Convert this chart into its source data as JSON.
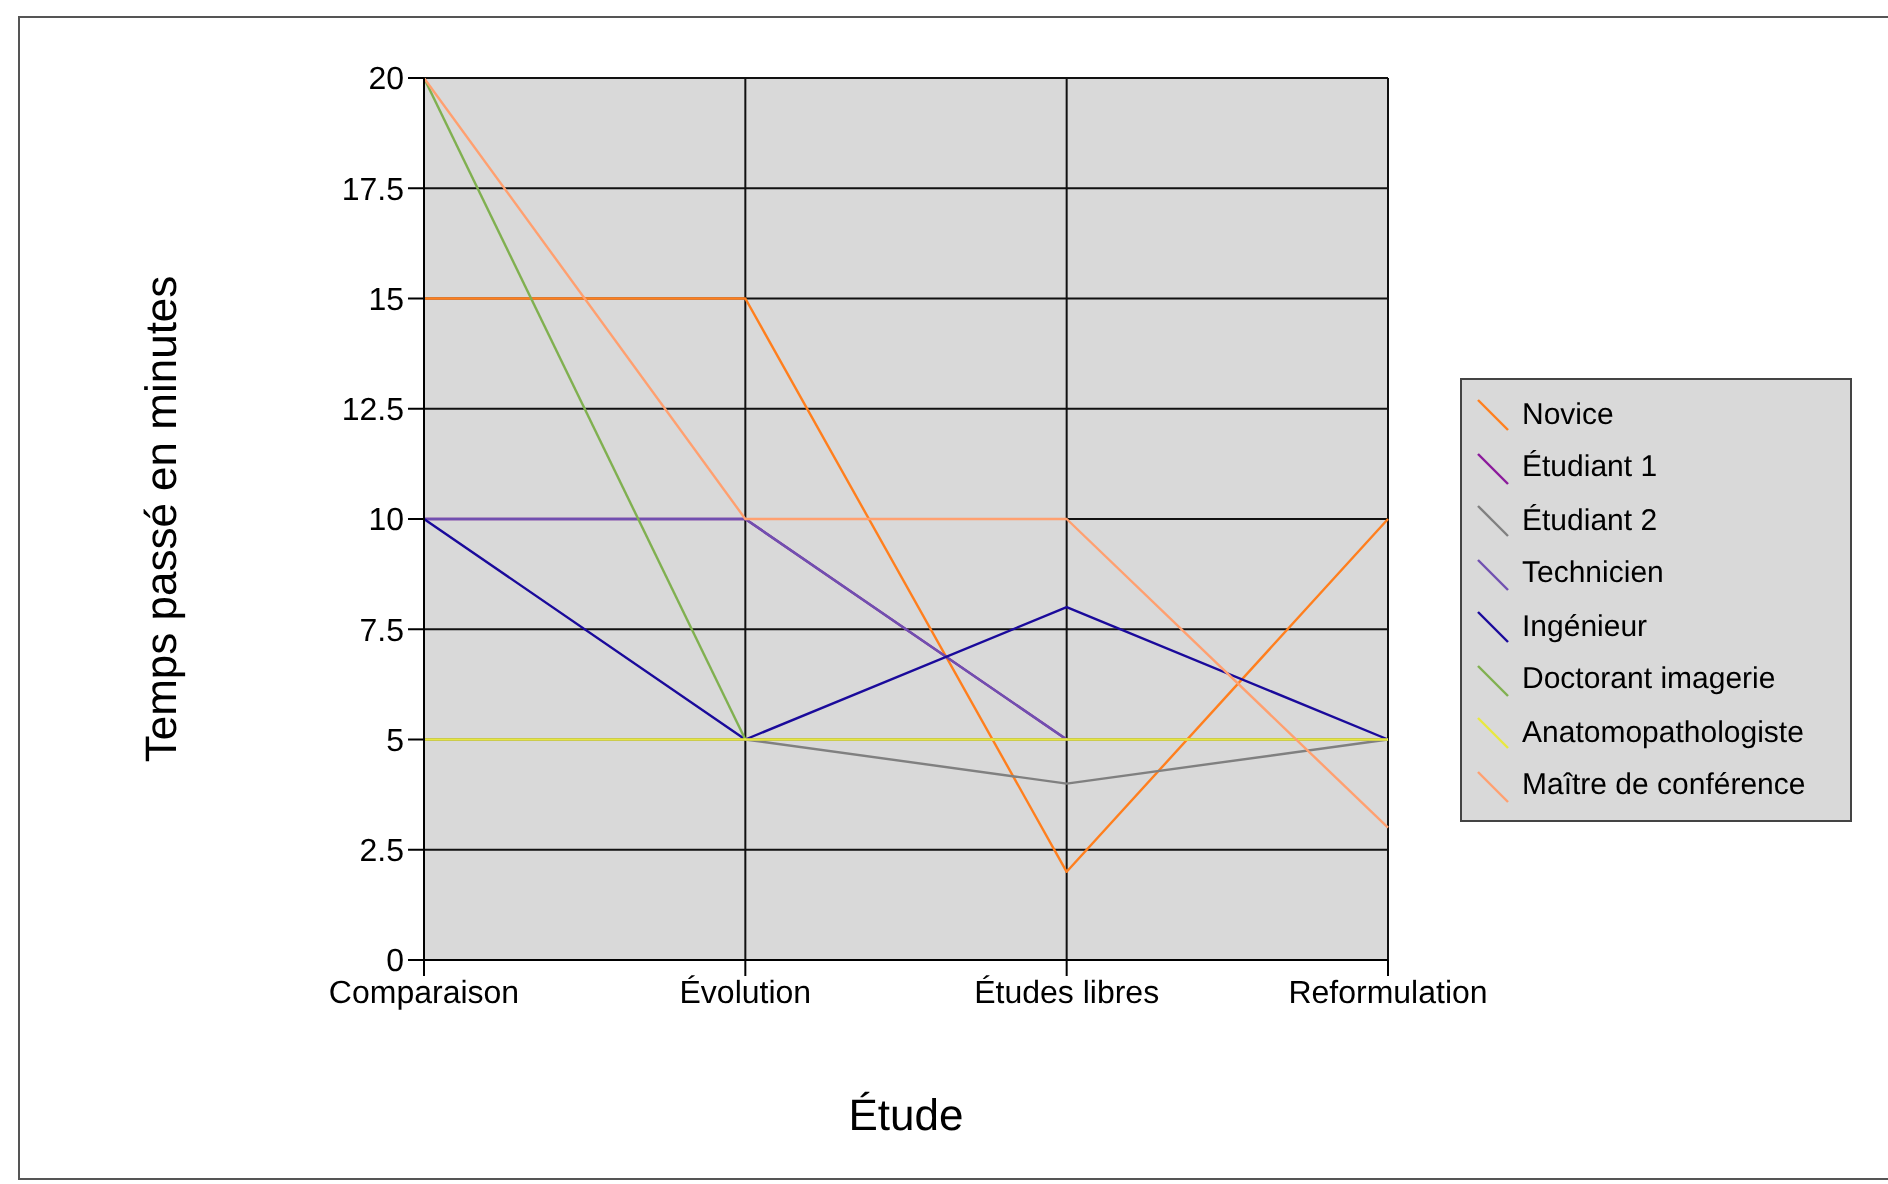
{
  "chart_data": {
    "type": "line",
    "xlabel": "Étude",
    "ylabel": "Temps passé en minutes",
    "categories": [
      "Comparaison",
      "Évolution",
      "Études libres",
      "Reformulation"
    ],
    "series": [
      {
        "name": "Novice",
        "color": "#ff7f1e",
        "values": [
          15,
          15,
          2,
          10
        ]
      },
      {
        "name": "Étudiant 1",
        "color": "#8b1a9b",
        "values": [
          10,
          10,
          5,
          null
        ]
      },
      {
        "name": "Étudiant 2",
        "color": "#808080",
        "values": [
          null,
          5,
          4,
          5
        ]
      },
      {
        "name": "Technicien",
        "color": "#7050b0",
        "values": [
          10,
          10,
          5,
          null
        ]
      },
      {
        "name": "Ingénieur",
        "color": "#1a0a9b",
        "values": [
          10,
          5,
          8,
          5
        ]
      },
      {
        "name": "Doctorant imagerie",
        "color": "#80b050",
        "values": [
          20,
          5,
          null,
          null
        ]
      },
      {
        "name": "Anatomopathologiste",
        "color": "#e8e840",
        "values": [
          5,
          5,
          5,
          5
        ]
      },
      {
        "name": "Maître de conférence",
        "color": "#ffa070",
        "values": [
          20,
          10,
          10,
          3
        ]
      }
    ],
    "ylim": [
      0,
      20
    ],
    "yticks": [
      0,
      2.5,
      5,
      7.5,
      10,
      12.5,
      15,
      17.5,
      20
    ],
    "grid": true,
    "legend": "right",
    "marker": "none",
    "line_style": "solid"
  }
}
